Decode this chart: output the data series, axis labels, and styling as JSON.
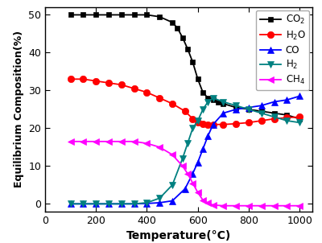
{
  "title": "",
  "xlabel": "Temperature(°C)",
  "ylabel": "Equilibrium Composition(%)",
  "xlim": [
    0,
    1050
  ],
  "ylim": [
    -2,
    52
  ],
  "xticks": [
    0,
    200,
    400,
    600,
    800,
    1000
  ],
  "yticks": [
    0,
    10,
    20,
    30,
    40,
    50
  ],
  "series": [
    {
      "label": "CO$_2$",
      "color": "#000000",
      "marker": "s",
      "x": [
        100,
        150,
        200,
        250,
        300,
        350,
        400,
        450,
        500,
        520,
        540,
        560,
        580,
        600,
        620,
        640,
        660,
        680,
        700,
        750,
        800,
        850,
        900,
        950,
        1000
      ],
      "y": [
        50,
        50,
        50,
        50,
        50,
        50,
        50,
        49.5,
        48,
        46.5,
        44,
        41,
        37.5,
        33,
        29.5,
        28,
        27.5,
        27,
        26.5,
        25.5,
        25,
        24.5,
        24,
        23.5,
        22.5
      ]
    },
    {
      "label": "H$_2$O",
      "color": "#ff0000",
      "marker": "o",
      "x": [
        100,
        150,
        200,
        250,
        300,
        350,
        400,
        450,
        500,
        550,
        580,
        600,
        620,
        640,
        660,
        700,
        750,
        800,
        850,
        900,
        950,
        1000
      ],
      "y": [
        33,
        33,
        32.5,
        32,
        31.5,
        30.5,
        29.5,
        28,
        26.5,
        24.5,
        22.5,
        21.5,
        21.2,
        21,
        21,
        21,
        21.2,
        21.5,
        22,
        22.5,
        22.8,
        23
      ]
    },
    {
      "label": "CO",
      "color": "#0000ff",
      "marker": "^",
      "x": [
        100,
        150,
        200,
        250,
        300,
        350,
        400,
        450,
        500,
        550,
        580,
        600,
        620,
        640,
        660,
        700,
        750,
        800,
        850,
        900,
        950,
        1000
      ],
      "y": [
        0,
        0,
        0,
        0,
        0,
        0,
        0.1,
        0.3,
        0.8,
        4,
        8,
        11,
        14.5,
        18,
        21,
        24,
        25,
        25.5,
        26,
        27,
        27.5,
        28.5
      ]
    },
    {
      "label": "H$_2$",
      "color": "#008080",
      "marker": "v",
      "x": [
        100,
        150,
        200,
        250,
        300,
        350,
        400,
        450,
        500,
        540,
        560,
        580,
        600,
        620,
        640,
        660,
        700,
        750,
        800,
        850,
        900,
        950,
        1000
      ],
      "y": [
        0,
        0,
        0,
        0,
        0,
        0,
        0.3,
        1.5,
        5,
        12,
        16,
        20,
        22,
        25,
        27,
        28,
        27,
        26,
        25,
        24,
        23,
        22,
        21.5
      ]
    },
    {
      "label": "CH$_4$",
      "color": "#ff00ff",
      "marker": "<",
      "x": [
        100,
        150,
        200,
        250,
        300,
        350,
        400,
        450,
        500,
        540,
        560,
        580,
        600,
        620,
        640,
        660,
        700,
        750,
        800,
        850,
        900,
        950,
        1000
      ],
      "y": [
        16.5,
        16.5,
        16.5,
        16.5,
        16.5,
        16.5,
        16,
        15,
        13,
        10,
        8,
        5.5,
        3,
        1,
        0.2,
        -0.3,
        -0.5,
        -0.5,
        -0.5,
        -0.5,
        -0.5,
        -0.5,
        -0.5
      ]
    }
  ],
  "legend_loc": "upper right",
  "background_color": "#ffffff",
  "figsize": [
    4.0,
    3.02
  ],
  "dpi": 100
}
